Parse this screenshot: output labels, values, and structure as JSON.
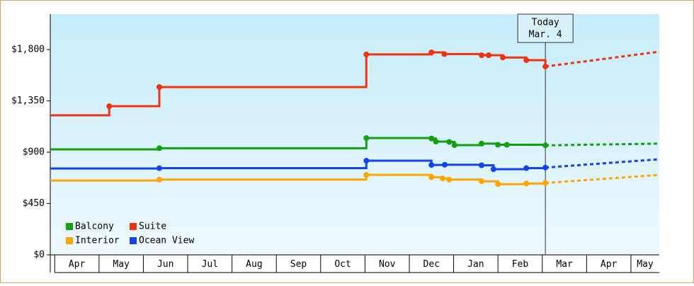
{
  "chart_data": {
    "type": "step",
    "categories": [
      "Apr",
      "May",
      "Jun",
      "Jul",
      "Aug",
      "Sep",
      "Oct",
      "Nov",
      "Dec",
      "Jan",
      "Feb",
      "Mar",
      "Apr",
      "May"
    ],
    "xlim": [
      -0.1,
      13.64
    ],
    "ylim": [
      0,
      2110
    ],
    "yticks": [
      {
        "value": 0,
        "label": "$0"
      },
      {
        "value": 450,
        "label": "$450"
      },
      {
        "value": 900,
        "label": "$900"
      },
      {
        "value": 1350,
        "label": "$1,350"
      },
      {
        "value": 1800,
        "label": "$1,800"
      }
    ],
    "legend": "bottom-left",
    "today": {
      "x": 11.07,
      "lines": [
        "Today",
        "Mar. 4"
      ]
    },
    "series": [
      {
        "name": "Balcony",
        "color": "#11a011",
        "x": [
          -0.1,
          2.36,
          7.03,
          8.5,
          8.6,
          8.9,
          9.02,
          9.63,
          10.0,
          10.2,
          11.07
        ],
        "values": [
          925,
          935,
          1024,
          1020,
          993,
          990,
          962,
          975,
          965,
          965,
          960
        ],
        "forecast": 975
      },
      {
        "name": "Suite",
        "color": "#ee3311",
        "x": [
          -0.1,
          1.23,
          2.36,
          7.03,
          8.5,
          8.79,
          9.63,
          9.79,
          10.11,
          10.64,
          11.07
        ],
        "values": [
          1223,
          1303,
          1471,
          1757,
          1775,
          1760,
          1750,
          1750,
          1730,
          1707,
          1651
        ],
        "forecast": 1781
      },
      {
        "name": "Interior",
        "color": "#ffa500",
        "x": [
          -0.1,
          2.36,
          7.03,
          8.5,
          8.75,
          8.9,
          9.63,
          10.0,
          10.64,
          11.07
        ],
        "values": [
          652,
          660,
          701,
          680,
          670,
          660,
          645,
          620,
          625,
          630
        ],
        "forecast": 701
      },
      {
        "name": "Ocean View",
        "color": "#1144ee",
        "x": [
          -0.1,
          2.36,
          7.03,
          8.5,
          8.8,
          9.63,
          9.9,
          10.64,
          11.07
        ],
        "values": [
          757,
          760,
          825,
          788,
          790,
          785,
          751,
          760,
          765
        ],
        "forecast": 838
      }
    ]
  }
}
